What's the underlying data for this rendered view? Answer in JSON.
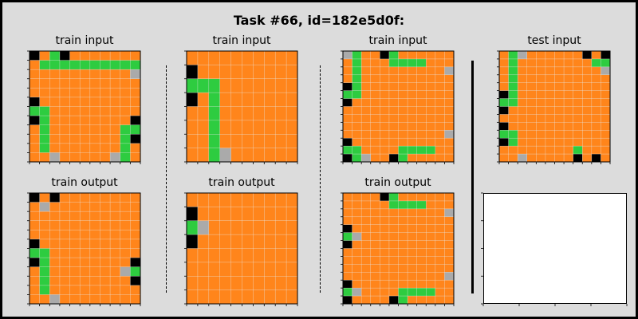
{
  "title": "Task #66, id=182e5d0f:",
  "colors": {
    "0": "#000000",
    "3": "#2ecc40",
    "5": "#aaaaaa",
    "7": "#ff851b"
  },
  "panels": [
    {
      "label": "train input",
      "grid": [
        "07307777777",
        "73333333333",
        "77777777775",
        "77777777777",
        "77777777777",
        "07777777777",
        "33777777777",
        "03777777770",
        "73777777733",
        "73777777730",
        "73777777737",
        "77577777537"
      ]
    },
    {
      "label": "train input",
      "grid": [
        "7777777777",
        "0777777777",
        "3337777777",
        "0737777777",
        "7737777777",
        "7737777777",
        "7737777777",
        "7735777777"
      ]
    },
    {
      "label": "train input",
      "grid": [
        "537703777777",
        "737773333777",
        "737777777775",
        "737777777777",
        "037777777777",
        "337777777777",
        "077777777777",
        "777777777777",
        "777777777777",
        "777777777777",
        "777777777775",
        "077777777777",
        "337777333377",
        "035770377777"
      ]
    },
    {
      "label": "test input",
      "grid": [
        "735777777070",
        "737777777733",
        "737777777775",
        "737777777777",
        "737777777777",
        "037777777777",
        "337777777777",
        "077777777777",
        "777777777777",
        "077777777777",
        "337777777777",
        "037777777777",
        "777777773777",
        "775777770707"
      ]
    },
    {
      "label": "train output",
      "grid": [
        "07077777777",
        "75777777777",
        "77777777777",
        "77777777777",
        "77777777777",
        "07777777777",
        "33777777777",
        "03777777770",
        "73777777753",
        "73777777770",
        "73777777777",
        "77577777777"
      ]
    },
    {
      "label": "train output",
      "grid": [
        "7777777777",
        "0777777777",
        "3577777777",
        "0777777777",
        "7777777777",
        "7777777777",
        "7777777777",
        "7777777777"
      ]
    },
    {
      "label": "train output",
      "grid": [
        "777703777777",
        "777773333777",
        "777777777775",
        "777777777777",
        "077777777777",
        "357777777777",
        "077777777777",
        "777777777777",
        "777777777777",
        "777777777777",
        "777777777775",
        "077777777777",
        "357777333377",
        "077770377777"
      ]
    }
  ]
}
